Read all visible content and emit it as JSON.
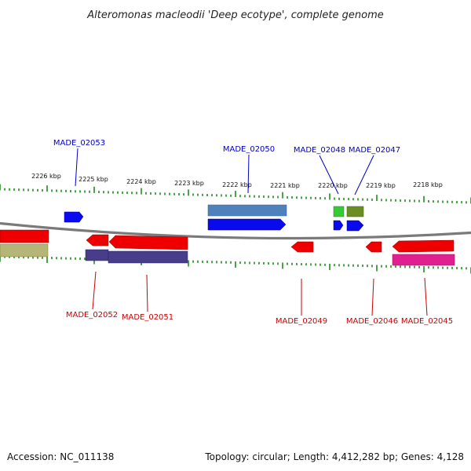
{
  "header": {
    "title": "Alteromonas macleodii 'Deep ecotype', complete genome"
  },
  "footer": {
    "accession": "Accession: NC_011138",
    "topology": "Topology: circular; Length: 4,412,282 bp; Genes: 4,128"
  },
  "colors": {
    "upper_label": "#0000c8",
    "lower_label": "#cc0000",
    "tick": "#228b22",
    "backbone": "#808080"
  },
  "scale": {
    "ticks": [
      {
        "label": "2226 kbp"
      },
      {
        "label": "2225 kbp"
      },
      {
        "label": "2224 kbp"
      },
      {
        "label": "2223 kbp"
      },
      {
        "label": "2222 kbp"
      },
      {
        "label": "2221 kbp"
      },
      {
        "label": "2220 kbp"
      },
      {
        "label": "2219 kbp"
      },
      {
        "label": "2218 kbp"
      }
    ]
  },
  "genes": [
    {
      "name": "MADE_02053",
      "strand": "upper"
    },
    {
      "name": "MADE_02050",
      "strand": "upper"
    },
    {
      "name": "MADE_02048",
      "strand": "upper"
    },
    {
      "name": "MADE_02047",
      "strand": "upper"
    },
    {
      "name": "MADE_02052",
      "strand": "lower"
    },
    {
      "name": "MADE_02051",
      "strand": "lower"
    },
    {
      "name": "MADE_02049",
      "strand": "lower"
    },
    {
      "name": "MADE_02046",
      "strand": "lower"
    },
    {
      "name": "MADE_02045",
      "strand": "lower"
    }
  ],
  "features": [
    {
      "kind": "blue-cds",
      "color": "#0000ee"
    },
    {
      "kind": "steelblue-gene",
      "color": "#4f82bd"
    },
    {
      "kind": "green-gene",
      "color": "#33cc33"
    },
    {
      "kind": "olive-gene",
      "color": "#6b8e23"
    },
    {
      "kind": "red-cds",
      "color": "#ee0000"
    },
    {
      "kind": "slateblue-gene",
      "color": "#483d8b"
    },
    {
      "kind": "khaki-gene",
      "color": "#b5b577"
    },
    {
      "kind": "magenta-gene",
      "color": "#e0208f"
    }
  ]
}
